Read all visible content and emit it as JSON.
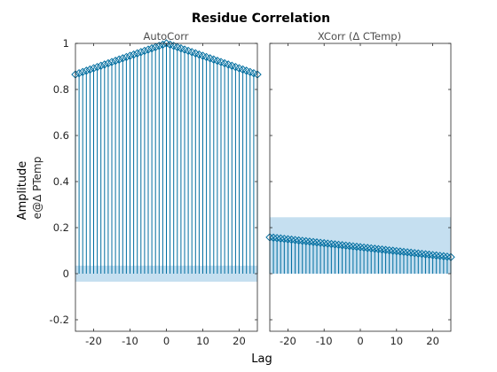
{
  "chart_data": {
    "type": "stem",
    "title": "Residue Correlation",
    "xlabel": "Lag",
    "ylabel": "Amplitude",
    "ylabel_sub": "e@Δ PTemp",
    "ylim": [
      -0.25,
      1.0
    ],
    "xlim": [
      -25,
      25
    ],
    "xticks": [
      -20,
      -10,
      0,
      10,
      20
    ],
    "yticks": [
      -0.2,
      0,
      0.2,
      0.4,
      0.6,
      0.8,
      1
    ],
    "yticks_label": [
      "-0.2",
      "0",
      "0.2",
      "0.4",
      "0.6",
      "0.8",
      "1"
    ],
    "stem_color": "#006ea0",
    "band_color": "#c5dff0",
    "panels": [
      {
        "subtitle": "AutoCorr",
        "lags_from": -25,
        "lags_to": 25,
        "peak": 1.0,
        "edge": 0.865,
        "confidence_band": [
          -0.035,
          0.035
        ],
        "show_yticks": true
      },
      {
        "subtitle": "XCorr (Δ CTemp)",
        "lags_from": -25,
        "lags_to": 25,
        "start": 0.158,
        "end": 0.072,
        "confidence_band": [
          0,
          0.245
        ],
        "show_yticks": false
      }
    ]
  }
}
